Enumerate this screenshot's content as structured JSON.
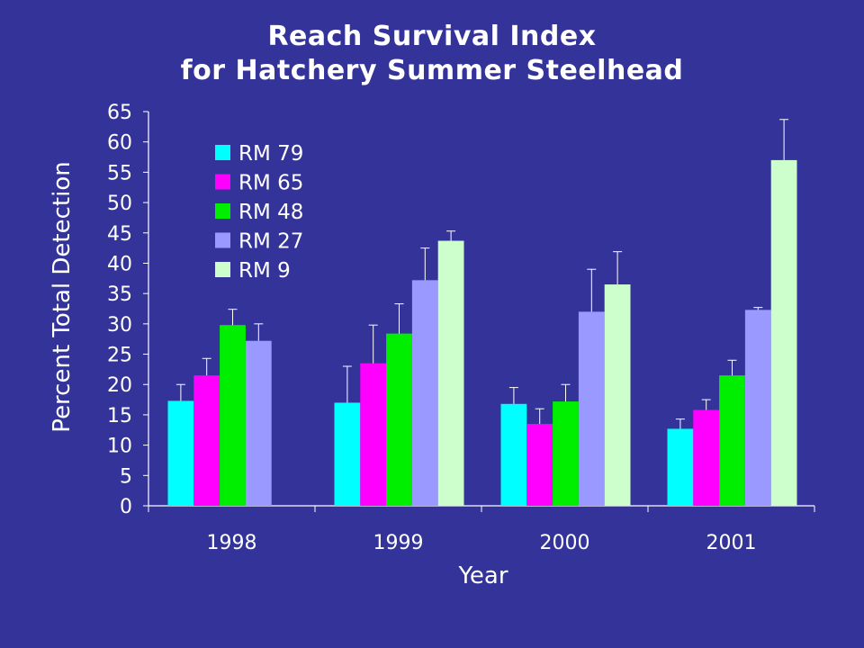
{
  "chart_data": {
    "type": "bar",
    "title_line1": "Reach Survival Index",
    "title_line2": "for Hatchery Summer Steelhead",
    "xlabel": "Year",
    "ylabel": "Percent Total Detection",
    "ylim": [
      0,
      65
    ],
    "yticks": [
      "0",
      "5",
      "10",
      "15",
      "20",
      "25",
      "30",
      "35",
      "40",
      "45",
      "50",
      "55",
      "60",
      "65"
    ],
    "categories": [
      "1998",
      "1999",
      "2000",
      "2001"
    ],
    "legend_placement": "top-left",
    "series": [
      {
        "name": "RM 79",
        "color": "#00ffff",
        "values": [
          17.3,
          17.0,
          16.8,
          12.7
        ],
        "error_upper": [
          20.0,
          23.0,
          19.5,
          14.3
        ]
      },
      {
        "name": "RM 65",
        "color": "#ff00ff",
        "values": [
          21.5,
          23.5,
          13.5,
          15.8
        ],
        "error_upper": [
          24.3,
          29.8,
          16.0,
          17.5
        ]
      },
      {
        "name": "RM 48",
        "color": "#00ee00",
        "values": [
          29.8,
          28.4,
          17.2,
          21.5
        ],
        "error_upper": [
          32.4,
          33.3,
          20.0,
          24.0
        ]
      },
      {
        "name": "RM 27",
        "color": "#9999ff",
        "values": [
          27.2,
          37.2,
          32.0,
          32.3
        ],
        "error_upper": [
          30.0,
          42.5,
          39.0,
          32.7
        ]
      },
      {
        "name": "RM 9",
        "color": "#ccffcc",
        "values": [
          null,
          43.7,
          36.5,
          57.0
        ],
        "error_upper": [
          null,
          45.3,
          41.9,
          63.7
        ]
      }
    ]
  }
}
